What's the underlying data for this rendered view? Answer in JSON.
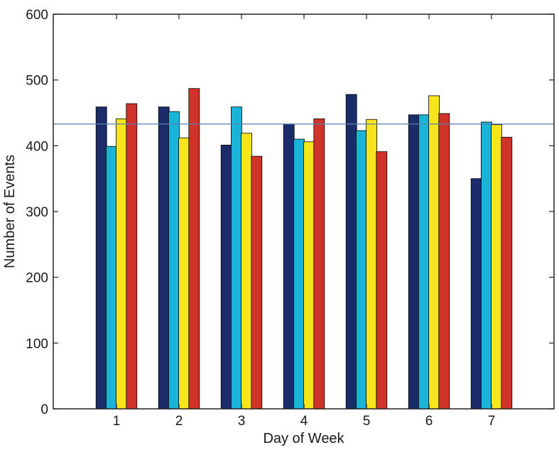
{
  "chart_data": {
    "type": "bar",
    "title": "",
    "xlabel": "Day of Week",
    "ylabel": "Number of Events",
    "categories": [
      "1",
      "2",
      "3",
      "4",
      "5",
      "6",
      "7"
    ],
    "ylim": [
      0,
      600
    ],
    "yticks": [
      "0",
      "100",
      "200",
      "300",
      "400",
      "500",
      "600"
    ],
    "grid": false,
    "legend": "none",
    "reference_line": {
      "value": 433,
      "color": "#5b7fb3"
    },
    "series": [
      {
        "color": "#1b2c6b",
        "values": [
          459,
          459,
          401,
          433,
          478,
          447,
          350
        ]
      },
      {
        "color": "#19b4d8",
        "values": [
          399,
          452,
          459,
          410,
          423,
          447,
          436
        ]
      },
      {
        "color": "#f7e51b",
        "values": [
          441,
          412,
          419,
          406,
          440,
          476,
          432
        ]
      },
      {
        "color": "#cf3329",
        "values": [
          464,
          487,
          384,
          441,
          391,
          449,
          413
        ]
      }
    ]
  }
}
